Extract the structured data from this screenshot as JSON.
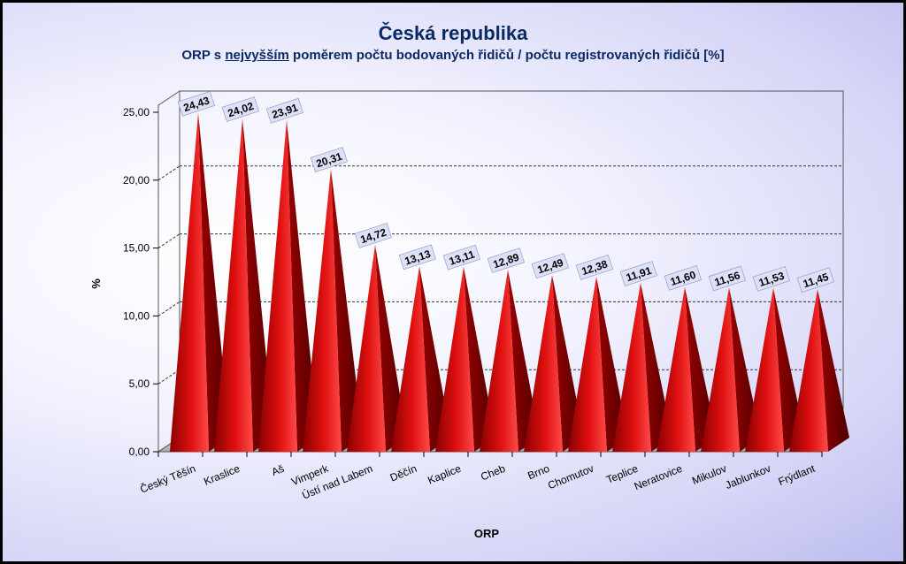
{
  "chart_data": {
    "type": "bar",
    "title": "Česká republika",
    "subtitle_pre": "ORP s ",
    "subtitle_em": "nejvyšším",
    "subtitle_post": " poměrem počtu bodovaných řidičů / počtu registrovaných řidičů [%]",
    "xlabel": "ORP",
    "ylabel": "%",
    "ylim": [
      0,
      25
    ],
    "yticks": [
      "0,00",
      "5,00",
      "10,00",
      "15,00",
      "20,00",
      "25,00"
    ],
    "grid": true,
    "legend": "none",
    "categories": [
      "Český Těšín",
      "Kraslice",
      "Aš",
      "Vimperk",
      "Ústí nad Labem",
      "Děčín",
      "Kaplice",
      "Cheb",
      "Brno",
      "Chomutov",
      "Teplice",
      "Neratovice",
      "Mikulov",
      "Jablunkov",
      "Frýdlant"
    ],
    "values": [
      24.43,
      24.02,
      23.91,
      20.31,
      14.72,
      13.13,
      13.11,
      12.89,
      12.49,
      12.38,
      11.91,
      11.6,
      11.56,
      11.53,
      11.45
    ],
    "labels": [
      "24,43",
      "24,02",
      "23,91",
      "20,31",
      "14,72",
      "13,13",
      "13,11",
      "12,89",
      "12,49",
      "12,38",
      "11,91",
      "11,60",
      "11,56",
      "11,53",
      "11,45"
    ],
    "colors": {
      "bar_light": "#ff3a3a",
      "bar_dark": "#7a0000",
      "label_bg": "#dde1f8",
      "title": "#0b2a63"
    }
  }
}
